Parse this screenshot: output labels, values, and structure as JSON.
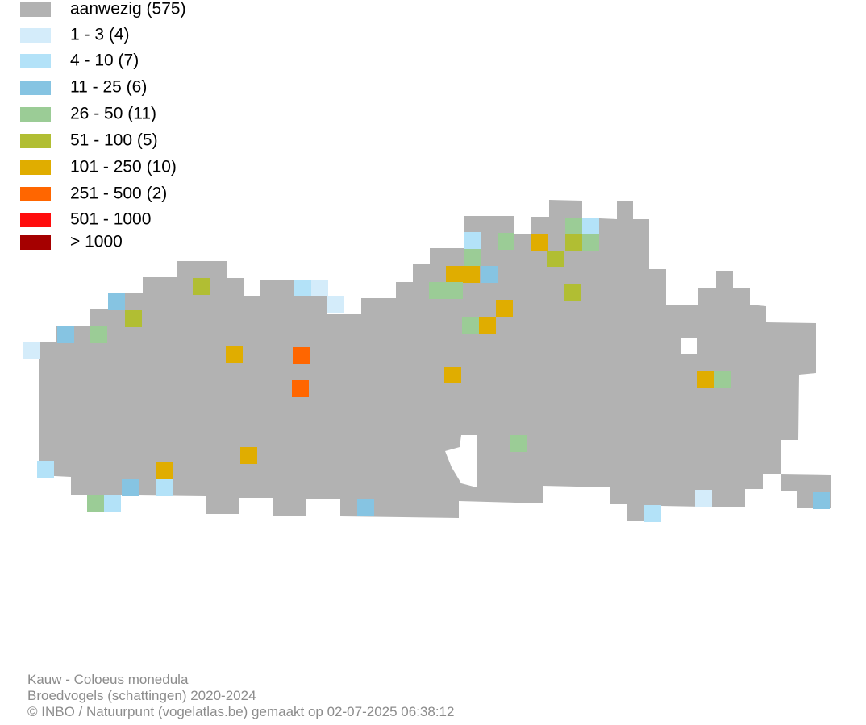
{
  "legend": [
    {
      "label": "aanwezig (575)",
      "color": "#b2b2b2"
    },
    {
      "label": "1 - 3 (4)",
      "color": "#d4ecfa"
    },
    {
      "label": "4 - 10 (7)",
      "color": "#b3e2f8"
    },
    {
      "label": "11 - 25 (6)",
      "color": "#86c4e2"
    },
    {
      "label": "26 - 50 (11)",
      "color": "#9bcc96"
    },
    {
      "label": "51 - 100 (5)",
      "color": "#b1be33"
    },
    {
      "label": "101 - 250 (10)",
      "color": "#e0ad00"
    },
    {
      "label": "251 - 500 (2)",
      "color": "#ff6600"
    },
    {
      "label": "501 - 1000",
      "color": "#ff0d0d"
    },
    {
      "label": "> 1000",
      "color": "#a50000"
    }
  ],
  "footer": {
    "species": "Kauw - Coloeus monedula",
    "dataset": "Broedvogels (schattingen) 2020-2024",
    "credit": "© INBO / Natuurpunt (vogelatlas.be) gemaakt op 02-07-2025 06:38:12"
  }
}
